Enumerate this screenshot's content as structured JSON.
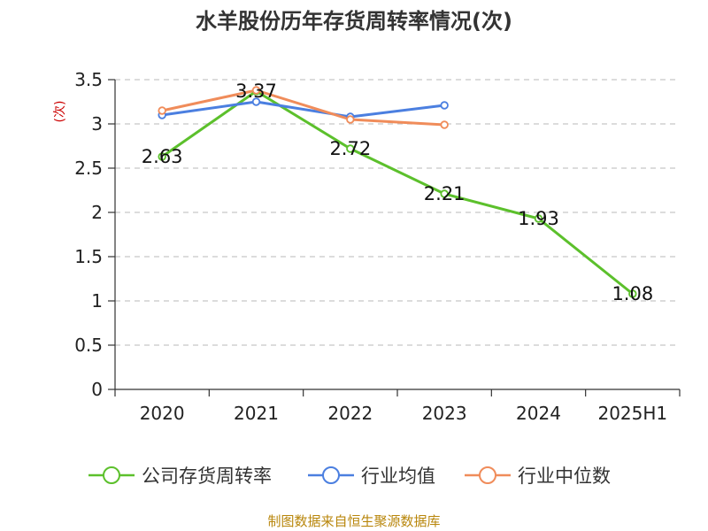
{
  "chart_data": {
    "type": "line",
    "title": "水羊股份历年存货周转率情况(次)",
    "ylabel": "(次)",
    "categories": [
      "2020",
      "2021",
      "2022",
      "2023",
      "2024",
      "2025H1"
    ],
    "yticks": [
      "0",
      "0.5",
      "1",
      "1.5",
      "2",
      "2.5",
      "3",
      "3.5"
    ],
    "ylim": [
      0,
      3.5
    ],
    "grid": true,
    "legend_position": "bottom",
    "series": [
      {
        "name": "公司存货周转率",
        "color": "#5cc02c",
        "values": [
          2.63,
          3.37,
          2.72,
          2.21,
          1.93,
          1.08
        ],
        "labels": [
          "2.63",
          "3.37",
          "2.72",
          "2.21",
          "1.93",
          "1.08"
        ]
      },
      {
        "name": "行业均值",
        "color": "#4b7fe0",
        "values": [
          3.1,
          3.25,
          3.08,
          3.21,
          null,
          null
        ]
      },
      {
        "name": "行业中位数",
        "color": "#f08c5a",
        "values": [
          3.15,
          3.38,
          3.05,
          2.99,
          null,
          null
        ]
      }
    ]
  },
  "source": "制图数据来自恒生聚源数据库"
}
